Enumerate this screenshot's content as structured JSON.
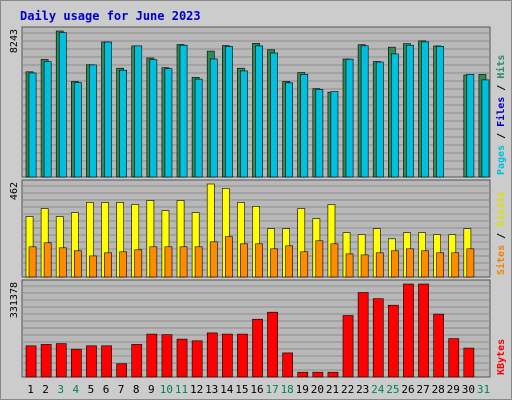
{
  "chart_data": {
    "type": "bar",
    "title": "Daily usage for June 2023",
    "days": [
      "1",
      "2",
      "3",
      "4",
      "5",
      "6",
      "7",
      "8",
      "9",
      "10",
      "11",
      "12",
      "13",
      "14",
      "15",
      "16",
      "17",
      "18",
      "19",
      "20",
      "21",
      "22",
      "23",
      "24",
      "25",
      "26",
      "27",
      "28",
      "29",
      "30",
      "31"
    ],
    "weekend_days": [
      "3",
      "4",
      "10",
      "11",
      "17",
      "18",
      "24",
      "25",
      "31"
    ],
    "panels": [
      {
        "name": "traffic",
        "max_label": "8243",
        "ylim": [
          0,
          8243
        ],
        "legend": [
          "Pages",
          "Files",
          "Hits"
        ],
        "legend_colors": [
          "#00c0e0",
          "#0000c0",
          "#2a8a6a"
        ],
        "series": [
          {
            "name": "Hits",
            "color": "#2e8b57",
            "values": [
              5940,
              6640,
              8243,
              5390,
              6340,
              7620,
              6140,
              7400,
              6720,
              6170,
              7480,
              5630,
              7110,
              7420,
              6140,
              7550,
              7180,
              5390,
              5900,
              4990,
              4790,
              6660,
              7470,
              6520,
              7330,
              7530,
              7690,
              7400,
              null,
              5760,
              5790
            ]
          },
          {
            "name": "Files",
            "color": "#00c0e0",
            "values": [
              5870,
              6510,
              8150,
              5330,
              6330,
              7620,
              6030,
              7400,
              6620,
              6120,
              7440,
              5530,
              6660,
              7380,
              5990,
              7400,
              7000,
              5320,
              5800,
              4950,
              4820,
              6650,
              7410,
              6490,
              6950,
              7440,
              7630,
              7380,
              null,
              5800,
              5480
            ]
          }
        ]
      },
      {
        "name": "visits",
        "max_label": "462",
        "ylim": [
          0,
          462
        ],
        "legend": [
          "Sites",
          "Visits"
        ],
        "legend_colors": [
          "#f08000",
          "#e0e000"
        ],
        "series": [
          {
            "name": "Visits",
            "color": "#ffff00",
            "values": [
              300,
              340,
              300,
              320,
              370,
              370,
              370,
              360,
              380,
              330,
              380,
              320,
              462,
              440,
              370,
              350,
              240,
              240,
              340,
              290,
              360,
              220,
              210,
              240,
              190,
              220,
              220,
              210,
              210,
              240,
              null
            ]
          },
          {
            "name": "Sites",
            "color": "#ff8c00",
            "values": [
              150,
              170,
              145,
              130,
              105,
              120,
              125,
              135,
              150,
              150,
              150,
              150,
              175,
              200,
              165,
              165,
              140,
              155,
              125,
              180,
              165,
              115,
              110,
              120,
              130,
              140,
              130,
              120,
              120,
              140,
              null
            ]
          }
        ]
      },
      {
        "name": "kbytes",
        "max_label": "331378",
        "ylim": [
          0,
          331378
        ],
        "legend": [
          "KBytes"
        ],
        "legend_colors": [
          "#ff0000"
        ],
        "series": [
          {
            "name": "KBytes",
            "color": "#ff0000",
            "values": [
              111000,
              116000,
              119000,
              99000,
              111000,
              111000,
              47000,
              116000,
              153000,
              151000,
              135000,
              129000,
              157000,
              153000,
              153000,
              206000,
              231000,
              86000,
              17000,
              17000,
              17000,
              219000,
              301000,
              279000,
              256000,
              331378,
              331378,
              224000,
              137000,
              103000,
              null
            ]
          }
        ]
      }
    ]
  }
}
